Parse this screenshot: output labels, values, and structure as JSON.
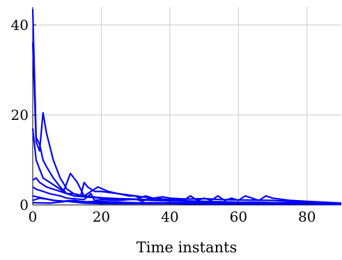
{
  "chart_data": {
    "type": "line",
    "title": "",
    "xlabel": "Time instants",
    "ylabel": "",
    "xlim": [
      0,
      90
    ],
    "ylim": [
      0,
      44
    ],
    "x_ticks": [
      0,
      20,
      40,
      60,
      80
    ],
    "y_ticks": [
      0,
      20,
      40
    ],
    "grid": true,
    "line_color": "#0000ff",
    "series": [
      {
        "x": [
          0,
          1,
          2,
          3,
          4,
          6,
          8,
          10,
          12,
          15,
          20,
          25,
          30,
          35,
          40,
          45,
          50,
          55,
          60,
          70,
          80,
          90
        ],
        "values": [
          43.5,
          15,
          13.5,
          10,
          8.5,
          6,
          4,
          2.5,
          2,
          1.8,
          1.5,
          1.3,
          1.2,
          1.0,
          0.9,
          0.8,
          0.7,
          0.6,
          0.5,
          0.4,
          0.3,
          0.2
        ]
      },
      {
        "x": [
          0,
          1,
          2,
          3,
          4,
          6,
          8,
          10,
          12,
          15,
          20,
          25,
          30,
          35,
          40,
          45,
          50,
          55,
          60,
          70,
          80,
          90
        ],
        "values": [
          36,
          14,
          12,
          20.5,
          16,
          10,
          6,
          3.5,
          2.5,
          2,
          1.6,
          1.4,
          1.3,
          1.1,
          1.0,
          0.9,
          0.8,
          0.7,
          0.6,
          0.5,
          0.4,
          0.3
        ]
      },
      {
        "x": [
          0,
          1,
          2,
          3,
          5,
          7,
          9,
          11,
          13,
          15,
          17,
          19,
          22,
          25,
          28,
          30,
          31,
          33,
          35,
          38,
          40,
          45,
          50,
          55,
          60,
          70,
          80,
          90
        ],
        "values": [
          17,
          10,
          8,
          6,
          5,
          4,
          3,
          7,
          5,
          2,
          3,
          4,
          3,
          2.5,
          2,
          2,
          1.5,
          2,
          1.5,
          1.8,
          1.5,
          1.3,
          1.4,
          1.2,
          1.1,
          1.0,
          0.6,
          0.3
        ]
      },
      {
        "x": [
          0,
          1,
          2,
          4,
          6,
          8,
          10,
          12,
          14,
          15,
          16,
          18,
          20,
          25,
          30,
          35,
          40,
          44,
          46,
          48,
          50,
          52,
          54,
          56,
          58,
          60,
          62,
          64,
          66,
          68,
          70,
          75,
          80,
          90
        ],
        "values": [
          5.5,
          6,
          5,
          4,
          3.5,
          3,
          2.5,
          2.5,
          2,
          5,
          4,
          3,
          3,
          2.5,
          2,
          1.5,
          1.2,
          1,
          2,
          1,
          1.5,
          1,
          2,
          1,
          1.5,
          1,
          2,
          1.5,
          1,
          2,
          1.5,
          1,
          0.8,
          0.4
        ]
      },
      {
        "x": [
          0,
          1,
          3,
          5,
          8,
          10,
          15,
          17,
          18,
          20,
          25,
          30,
          32,
          34,
          36,
          40,
          45,
          50,
          55,
          60,
          65,
          70,
          80,
          90
        ],
        "values": [
          4,
          3.5,
          3,
          2.5,
          2,
          1.5,
          1.2,
          2.5,
          1,
          1.2,
          1,
          1.3,
          0.8,
          1.5,
          1,
          0.9,
          0.8,
          0.7,
          0.7,
          0.6,
          0.6,
          0.5,
          0.5,
          0.3
        ]
      },
      {
        "x": [
          0,
          3,
          6,
          10,
          15,
          20,
          25,
          30,
          40,
          50,
          60,
          70,
          80,
          90
        ],
        "values": [
          2,
          1.5,
          1,
          0.8,
          0.7,
          0.8,
          0.6,
          0.5,
          0.5,
          0.4,
          0.4,
          0.3,
          0.3,
          0.2
        ]
      },
      {
        "x": [
          0,
          5,
          10,
          15,
          20,
          30,
          40,
          50,
          60,
          70,
          80,
          90
        ],
        "values": [
          0.5,
          0.4,
          0.8,
          0.4,
          0.3,
          0.3,
          0.3,
          0.2,
          0.2,
          0.2,
          0.2,
          0.1
        ]
      },
      {
        "x": [
          0,
          2,
          5,
          8,
          12,
          16,
          20,
          30,
          40,
          50,
          60,
          70,
          80,
          90
        ],
        "values": [
          1,
          1.5,
          1.2,
          0.8,
          1,
          0.6,
          0.5,
          0.4,
          0.4,
          0.3,
          0.3,
          0.3,
          0.2,
          0.2
        ]
      }
    ]
  }
}
